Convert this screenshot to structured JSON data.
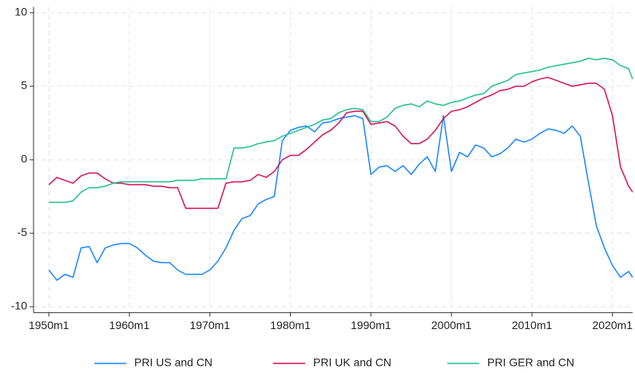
{
  "chart_data": {
    "type": "line",
    "x": [
      1950,
      1951,
      1952,
      1953,
      1954,
      1955,
      1956,
      1957,
      1958,
      1959,
      1960,
      1961,
      1962,
      1963,
      1964,
      1965,
      1966,
      1967,
      1968,
      1969,
      1970,
      1971,
      1972,
      1973,
      1974,
      1975,
      1976,
      1977,
      1978,
      1979,
      1980,
      1981,
      1982,
      1983,
      1984,
      1985,
      1986,
      1987,
      1988,
      1989,
      1990,
      1991,
      1992,
      1993,
      1994,
      1995,
      1996,
      1997,
      1998,
      1999,
      2000,
      2001,
      2002,
      2003,
      2004,
      2005,
      2006,
      2007,
      2008,
      2009,
      2010,
      2011,
      2012,
      2013,
      2014,
      2015,
      2016,
      2017,
      2018,
      2019,
      2020,
      2021,
      2022,
      2022.5
    ],
    "series": [
      {
        "name": "PRI US and CN",
        "color": "#1a85ff",
        "values": [
          -7.5,
          -8.2,
          -7.8,
          -8.0,
          -6.0,
          -5.9,
          -7.0,
          -6.0,
          -5.8,
          -5.7,
          -5.7,
          -6.0,
          -6.5,
          -6.9,
          -7.0,
          -7.0,
          -7.5,
          -7.8,
          -7.8,
          -7.8,
          -7.5,
          -6.9,
          -6.0,
          -4.8,
          -4.0,
          -3.8,
          -3.0,
          -2.7,
          -2.5,
          1.3,
          2.0,
          2.2,
          2.3,
          1.9,
          2.5,
          2.6,
          2.8,
          2.9,
          3.0,
          2.8,
          -1.0,
          -0.5,
          -0.4,
          -0.8,
          -0.4,
          -1.0,
          -0.3,
          0.2,
          -0.8,
          3.0,
          -0.8,
          0.5,
          0.2,
          1.0,
          0.8,
          0.2,
          0.4,
          0.8,
          1.4,
          1.2,
          1.4,
          1.8,
          2.1,
          2.0,
          1.8,
          2.3,
          1.6,
          -1.5,
          -4.5,
          -6.0,
          -7.2,
          -8.0,
          -7.6,
          -8.0
        ]
      },
      {
        "name": "PRI UK and CN",
        "color": "#d41159",
        "values": [
          -1.7,
          -1.2,
          -1.4,
          -1.6,
          -1.1,
          -0.9,
          -0.9,
          -1.3,
          -1.6,
          -1.6,
          -1.7,
          -1.7,
          -1.7,
          -1.8,
          -1.8,
          -1.9,
          -1.9,
          -3.3,
          -3.3,
          -3.3,
          -3.3,
          -3.3,
          -1.6,
          -1.5,
          -1.5,
          -1.4,
          -1.0,
          -1.2,
          -0.8,
          0.0,
          0.3,
          0.3,
          0.7,
          1.2,
          1.7,
          2.0,
          2.5,
          3.2,
          3.3,
          3.3,
          2.4,
          2.5,
          2.6,
          2.3,
          1.6,
          1.1,
          1.1,
          1.4,
          2.0,
          2.8,
          3.3,
          3.4,
          3.6,
          3.9,
          4.2,
          4.4,
          4.7,
          4.8,
          5.0,
          5.0,
          5.3,
          5.5,
          5.6,
          5.4,
          5.2,
          5.0,
          5.1,
          5.2,
          5.2,
          4.8,
          3.0,
          -0.5,
          -1.8,
          -2.2
        ]
      },
      {
        "name": "PRI GER and CN",
        "color": "#1fc08f",
        "values": [
          -2.9,
          -2.9,
          -2.9,
          -2.8,
          -2.2,
          -1.9,
          -1.9,
          -1.8,
          -1.6,
          -1.5,
          -1.5,
          -1.5,
          -1.5,
          -1.5,
          -1.5,
          -1.5,
          -1.4,
          -1.4,
          -1.4,
          -1.3,
          -1.3,
          -1.3,
          -1.3,
          0.8,
          0.8,
          0.9,
          1.1,
          1.2,
          1.3,
          1.6,
          1.8,
          2.0,
          2.2,
          2.4,
          2.7,
          2.8,
          3.2,
          3.4,
          3.5,
          3.4,
          2.6,
          2.6,
          2.9,
          3.5,
          3.7,
          3.8,
          3.6,
          4.0,
          3.8,
          3.7,
          3.9,
          4.0,
          4.2,
          4.4,
          4.5,
          5.0,
          5.2,
          5.4,
          5.8,
          5.9,
          6.0,
          6.1,
          6.3,
          6.4,
          6.5,
          6.6,
          6.7,
          6.9,
          6.8,
          6.9,
          6.8,
          6.4,
          6.2,
          5.5
        ]
      }
    ],
    "xlim": [
      1948.1,
      2022.5
    ],
    "xticks": [
      {
        "value": 1950,
        "label": "1950m1"
      },
      {
        "value": 1960,
        "label": "1960m1"
      },
      {
        "value": 1970,
        "label": "1970m1"
      },
      {
        "value": 1980,
        "label": "1980m1"
      },
      {
        "value": 1990,
        "label": "1990m1"
      },
      {
        "value": 2000,
        "label": "2000m1"
      },
      {
        "value": 2010,
        "label": "2010m1"
      },
      {
        "value": 2020,
        "label": "2020m1"
      }
    ],
    "ylim": [
      -10.4,
      10.4
    ],
    "yticks": [
      -10,
      -5,
      0,
      5,
      10
    ],
    "grid": true,
    "legend": "bottom"
  }
}
